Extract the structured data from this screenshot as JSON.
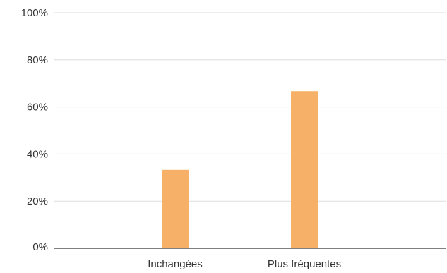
{
  "chart_data": {
    "type": "bar",
    "categories": [
      "Inchangées",
      "Plus fréquentes"
    ],
    "values": [
      33.3,
      66.7
    ],
    "ylim": [
      0,
      100
    ],
    "yticks": [
      0,
      20,
      40,
      60,
      80,
      100
    ],
    "ytick_labels": [
      "0%",
      "20%",
      "40%",
      "60%",
      "80%",
      "100%"
    ],
    "grid": true,
    "legend": "none",
    "bar_color": "#F7B068"
  }
}
